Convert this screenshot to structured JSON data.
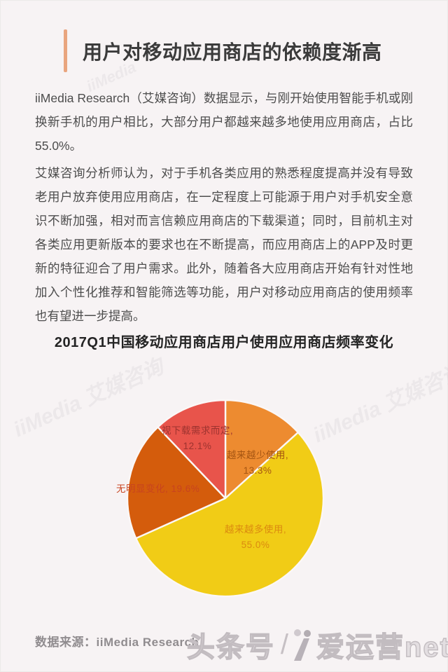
{
  "page": {
    "title": "用户对移动应用商店的依赖度渐高",
    "accent_color": "#E9A57E",
    "paragraphs": [
      "iiMedia Research（艾媒咨询）数据显示，与刚开始使用智能手机或刚换新手机的用户相比，大部分用户都越来越多地使用应用商店，占比55.0%。",
      "艾媒咨询分析师认为，对于手机各类应用的熟悉程度提高并没有导致老用户放弃使用应用商店，在一定程度上可能源于用户对手机安全意识不断加强，相对而言信赖应用商店的下载渠道；同时，目前机主对各类应用更新版本的要求也在不断提高，而应用商店上的APP及时更新的特征迎合了用户需求。此外，随着各大应用商店开始有针对性地加入个性化推荐和智能筛选等功能，用户对移动应用商店的使用频率也有望进一步提高。"
    ]
  },
  "chart_data": {
    "type": "pie",
    "title": "2017Q1中国移动应用商店用户使用应用商店频率变化",
    "unit": "%",
    "direction": "clockwise",
    "start_angle": "12-o'clock",
    "legend_position": "none-direct-labels",
    "slices": [
      {
        "name": "越来越少使用",
        "value": 13.3,
        "color": "#ED8B30",
        "label_color": "#A55512",
        "label_line1": "越来越少使用,",
        "label_line2": "13.3%"
      },
      {
        "name": "越来越多使用",
        "value": 55.0,
        "color": "#F1CC16",
        "label_color": "#DB8A10",
        "label_line1": "越来越多使用,",
        "label_line2": "55.0%"
      },
      {
        "name": "无明显变化",
        "value": 19.6,
        "color": "#D45C0C",
        "label_color": "#C8431F",
        "label_line1": "无明显变化, 19.6%",
        "label_line2": ""
      },
      {
        "name": "视下载需求而定",
        "value": 12.1,
        "color": "#E8544B",
        "label_color": "#9D332F",
        "label_line1": "视下载需求而定,",
        "label_line2": "12.1%"
      }
    ]
  },
  "footer": {
    "source_label": "数据来源：iiMedia Research",
    "watermark_left": "头条号",
    "watermark_slash": "/",
    "watermark_right": "爱运营net"
  },
  "watermarks": {
    "brand": "iiMedia",
    "brand_full": "iiMedia 艾媒咨询"
  }
}
